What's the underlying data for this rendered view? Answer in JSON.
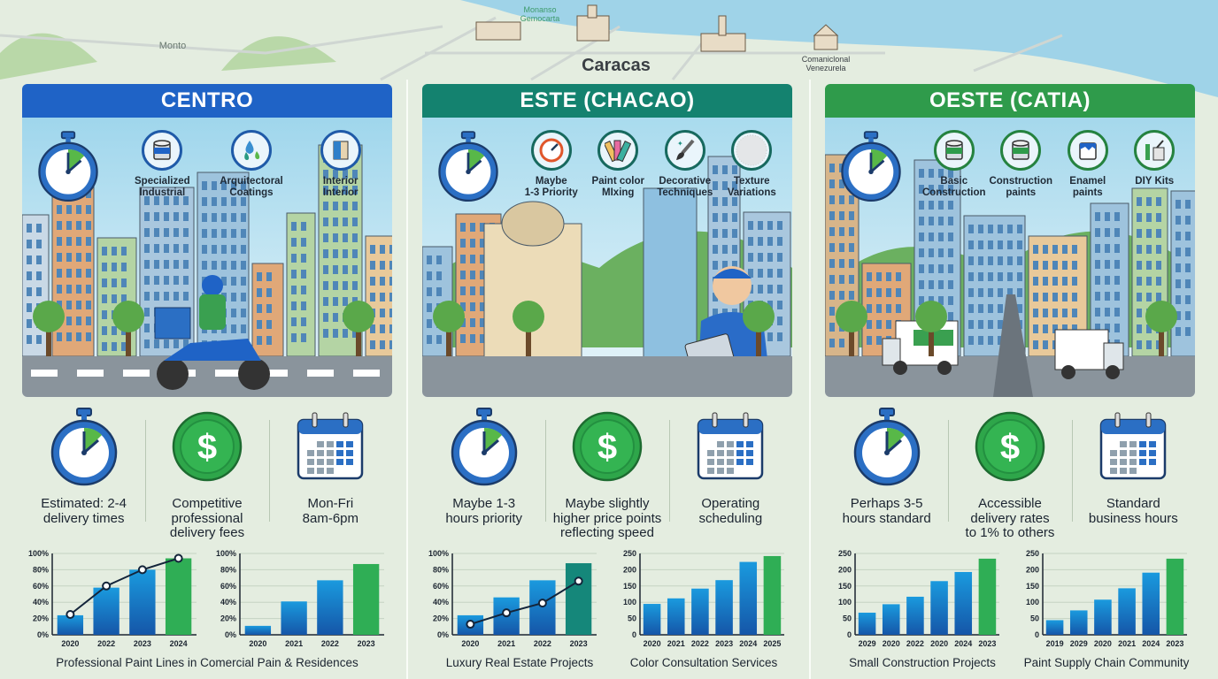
{
  "map": {
    "city": "Caracas",
    "labels": [
      "Monanso\nGemocarta",
      "Comaniclonal\nVenezurela",
      "Monto"
    ],
    "sea_color": "#9fd3e8"
  },
  "panels": [
    {
      "title": "CENTRO",
      "accent": "#1f63c6",
      "ring": "#1f5aa8",
      "services": [
        {
          "label": "Specialized\nIndustrial",
          "icon": "paint-can-icon"
        },
        {
          "label": "Arquitectoral\nCoatings",
          "icon": "paint-drops-icon"
        },
        {
          "label": "Interior\nInterior",
          "icon": "interior-swatch-icon"
        }
      ],
      "stats": [
        {
          "label": "Estimated: 2-4\ndelivery times",
          "icon": "stopwatch-icon"
        },
        {
          "label": "Competitive\nprofessional\ndelivery fees",
          "icon": "dollar-icon"
        },
        {
          "label": "Mon-Fri\n8am-6pm",
          "icon": "calendar-icon"
        }
      ],
      "captions": [
        "Professional Paint Lines in Comercial Pain & Residences"
      ]
    },
    {
      "title": "ESTE (CHACAO)",
      "accent": "#14826f",
      "ring": "#17695e",
      "services": [
        {
          "label": "Maybe\n1-3 Priority",
          "icon": "speedometer-icon"
        },
        {
          "label": "Paint color\nMIxing",
          "icon": "color-fan-icon"
        },
        {
          "label": "Decorative\nTechniques",
          "icon": "paintbrush-icon"
        },
        {
          "label": "Texture\nVariations",
          "icon": "texture-icon"
        }
      ],
      "stats": [
        {
          "label": "Maybe 1-3\nhours priority",
          "icon": "stopwatch-icon"
        },
        {
          "label": "Maybe slightly\nhigher price points\nreflecting speed",
          "icon": "dollar-icon"
        },
        {
          "label": "Operating\nscheduling",
          "icon": "calendar-icon"
        }
      ],
      "captions": [
        "Luxury Real Estate Projects",
        "Color Consultation Services"
      ]
    },
    {
      "title": "OESTE (CATIA)",
      "accent": "#2f9b4b",
      "ring": "#25823f",
      "services": [
        {
          "label": "Basic\nConstruction",
          "icon": "paint-can-icon"
        },
        {
          "label": "Construction\npaints",
          "icon": "paint-can-icon"
        },
        {
          "label": "Enamel\npaints",
          "icon": "enamel-can-icon"
        },
        {
          "label": "DIY Kits",
          "icon": "diy-kit-icon"
        }
      ],
      "stats": [
        {
          "label": "Perhaps 3-5\nhours standard",
          "icon": "stopwatch-icon"
        },
        {
          "label": "Accessible\ndelivery rates\nto 1% to others",
          "icon": "dollar-icon"
        },
        {
          "label": "Standard\nbusiness hours",
          "icon": "calendar-icon"
        }
      ],
      "captions": [
        "Small Construction Projects",
        "Paint Supply Chain Community"
      ]
    }
  ],
  "chart_data": [
    {
      "type": "bar",
      "categories": [
        "2020",
        "2022",
        "2023",
        "2024"
      ],
      "values": [
        24,
        58,
        80,
        94
      ],
      "line_values": [
        25,
        60,
        80,
        94
      ],
      "ylim": [
        0,
        100
      ],
      "yticks": [
        "0%",
        "20%",
        "40%",
        "60%",
        "80%",
        "100%"
      ],
      "highlight_color": "#2fae55",
      "grid": true
    },
    {
      "type": "bar",
      "categories": [
        "2020",
        "2021",
        "2022",
        "2023"
      ],
      "values": [
        11,
        41,
        67,
        87
      ],
      "ylim": [
        0,
        100
      ],
      "yticks": [
        "0%",
        "20%",
        "40%",
        "60%",
        "80%",
        "100%"
      ],
      "highlight_color": "#2fae55",
      "grid": true
    },
    {
      "type": "bar",
      "title": "Luxury Real Estate Projects",
      "categories": [
        "2020",
        "2021",
        "2022",
        "2023"
      ],
      "values": [
        24,
        46,
        67,
        88
      ],
      "line_values": [
        13,
        27,
        39,
        66
      ],
      "ylim": [
        0,
        100
      ],
      "yticks": [
        "0%",
        "20%",
        "40%",
        "60%",
        "80%",
        "100%"
      ],
      "highlight_color": "#15877a",
      "grid": true
    },
    {
      "type": "bar",
      "title": "Color Consultation Services",
      "categories": [
        "2020",
        "2021",
        "2022",
        "2023",
        "2024",
        "2025"
      ],
      "values": [
        95,
        112,
        142,
        168,
        224,
        242
      ],
      "ylim": [
        0,
        250
      ],
      "yticks": [
        "0",
        "50",
        "100",
        "150",
        "200",
        "250"
      ],
      "highlight_color": "#2fae55",
      "grid": true
    },
    {
      "type": "bar",
      "title": "Small Construction Projects",
      "categories": [
        "2029",
        "2020",
        "2022",
        "2020",
        "2024",
        "2023"
      ],
      "values": [
        68,
        94,
        117,
        165,
        193,
        234
      ],
      "ylim": [
        0,
        250
      ],
      "yticks": [
        "0",
        "50",
        "100",
        "150",
        "200",
        "250"
      ],
      "highlight_color": "#2fae55",
      "grid": true
    },
    {
      "type": "bar",
      "title": "Paint Supply Chain Community",
      "categories": [
        "2019",
        "2029",
        "2020",
        "2021",
        "2024",
        "2023"
      ],
      "values": [
        45,
        75,
        108,
        143,
        191,
        234
      ],
      "ylim": [
        0,
        250
      ],
      "yticks": [
        "0",
        "50",
        "100",
        "150",
        "200",
        "250"
      ],
      "highlight_color": "#2fae55",
      "grid": true
    }
  ]
}
